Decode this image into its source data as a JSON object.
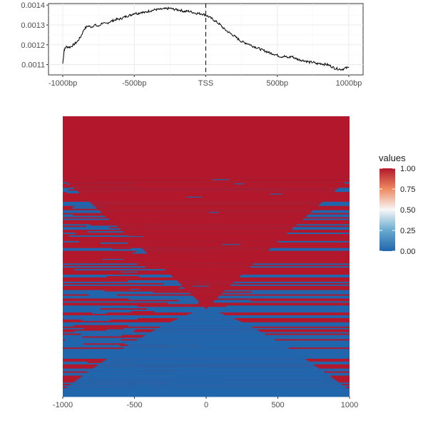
{
  "chart_data": [
    {
      "type": "line",
      "title": "",
      "xlabel": "",
      "ylabel": "",
      "x_ticks": [
        {
          "value": -1000,
          "label": "-1000bp"
        },
        {
          "value": -500,
          "label": "-500bp"
        },
        {
          "value": 0,
          "label": "TSS"
        },
        {
          "value": 500,
          "label": "500bp"
        },
        {
          "value": 1000,
          "label": "1000bp"
        }
      ],
      "y_ticks": [
        {
          "value": 0.0011,
          "label": "0.0011"
        },
        {
          "value": 0.0012,
          "label": "0.0012"
        },
        {
          "value": 0.0013,
          "label": "0.0013"
        },
        {
          "value": 0.0014,
          "label": "0.0014"
        }
      ],
      "xlim": [
        -1000,
        1000
      ],
      "ylim": [
        0.001048,
        0.001408
      ],
      "grid": true,
      "vline": {
        "x": 0,
        "style": "dashed"
      },
      "series": [
        {
          "x": [
            -1000,
            -990,
            -975,
            -950,
            -925,
            -900,
            -875,
            -850,
            -825,
            -800,
            -775,
            -750,
            -725,
            -700,
            -675,
            -650,
            -625,
            -600,
            -575,
            -550,
            -525,
            -500,
            -475,
            -450,
            -425,
            -400,
            -375,
            -350,
            -325,
            -300,
            -275,
            -250,
            -225,
            -200,
            -175,
            -150,
            -125,
            -100,
            -75,
            -50,
            -25,
            0,
            25,
            50,
            75,
            100,
            125,
            150,
            175,
            200,
            225,
            250,
            275,
            300,
            325,
            350,
            375,
            400,
            425,
            450,
            475,
            500,
            525,
            550,
            575,
            600,
            625,
            650,
            675,
            700,
            725,
            750,
            775,
            800,
            825,
            850,
            875,
            900,
            925,
            950,
            975,
            1000
          ],
          "y": [
            0.001105,
            0.001175,
            0.00119,
            0.001188,
            0.0012,
            0.001215,
            0.00124,
            0.00128,
            0.001295,
            0.00129,
            0.0013,
            0.001292,
            0.00131,
            0.001305,
            0.001315,
            0.001322,
            0.001328,
            0.00133,
            0.001338,
            0.001345,
            0.00135,
            0.00136,
            0.001358,
            0.001365,
            0.001362,
            0.00137,
            0.001374,
            0.001378,
            0.001378,
            0.00138,
            0.001382,
            0.001384,
            0.001379,
            0.001377,
            0.001374,
            0.001368,
            0.00137,
            0.001366,
            0.00136,
            0.001358,
            0.001356,
            0.00135,
            0.00134,
            0.001328,
            0.001315,
            0.001302,
            0.001282,
            0.001268,
            0.001256,
            0.001244,
            0.00123,
            0.001216,
            0.00121,
            0.001204,
            0.001194,
            0.001188,
            0.00118,
            0.001172,
            0.001166,
            0.001158,
            0.001154,
            0.001147,
            0.00114,
            0.001142,
            0.001134,
            0.001142,
            0.001132,
            0.001125,
            0.001122,
            0.001118,
            0.001112,
            0.001112,
            0.001104,
            0.001106,
            0.001102,
            0.0011,
            0.001092,
            0.001082,
            0.001078,
            0.001076,
            0.001082,
            0.001085
          ]
        }
      ]
    },
    {
      "type": "heatmap",
      "title": "",
      "xlabel": "",
      "ylabel": "",
      "x_ticks": [
        {
          "value": -1000,
          "label": "-1000"
        },
        {
          "value": -500,
          "label": "-500"
        },
        {
          "value": 0,
          "label": "0"
        },
        {
          "value": 500,
          "label": "500"
        },
        {
          "value": 1000,
          "label": "1000"
        }
      ],
      "xlim": [
        -1000,
        1000
      ],
      "colors": {
        "high": "#b2182b",
        "mid": "#f7f7f7",
        "low": "#2166ac"
      },
      "row_count": 200,
      "pattern": "rows sorted by transition position; upper rows mostly 1 (red), lower rows mostly 0 (blue), hourglass boundary converging at TSS (x=0)",
      "legend": {
        "title": "values",
        "labels": [
          "1.00",
          "0.75",
          "0.50",
          "0.25",
          "0.00"
        ],
        "range": [
          0,
          1
        ],
        "position": "right"
      }
    }
  ]
}
